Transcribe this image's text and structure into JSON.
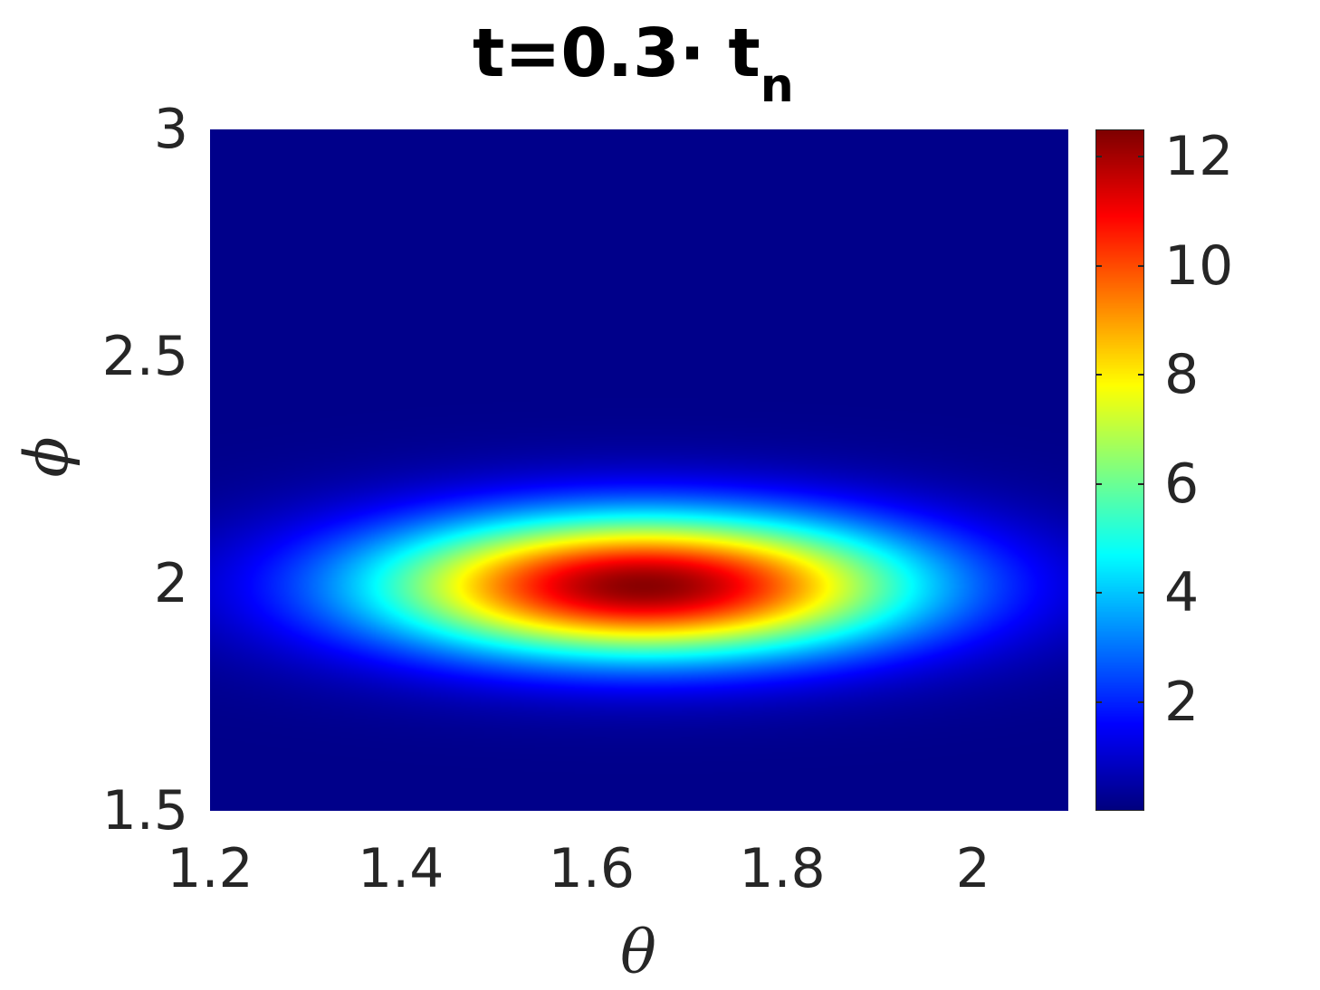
{
  "chart_data": {
    "type": "heatmap",
    "title": "t=0.3· t",
    "title_subscript": "n",
    "xlabel": "θ",
    "ylabel": "ϕ",
    "xlim": [
      1.2,
      2.1
    ],
    "ylim": [
      1.5,
      3.0
    ],
    "xticks": [
      "1.2",
      "1.4",
      "1.6",
      "1.8",
      "2"
    ],
    "xtick_values": [
      1.2,
      1.4,
      1.6,
      1.8,
      2.0
    ],
    "yticks": [
      "1.5",
      "2",
      "2.5",
      "3"
    ],
    "ytick_values": [
      1.5,
      2.0,
      2.5,
      3.0
    ],
    "colorbar": {
      "range": [
        0,
        12.5
      ],
      "ticks": [
        "2",
        "4",
        "6",
        "8",
        "10",
        "12"
      ],
      "tick_values": [
        2,
        4,
        6,
        8,
        10,
        12
      ],
      "colormap": "jet"
    },
    "peak": {
      "theta": 1.655,
      "phi": 1.995,
      "value": 12.5
    },
    "spread": {
      "theta": 0.2,
      "phi": 0.11
    },
    "grid": false
  }
}
